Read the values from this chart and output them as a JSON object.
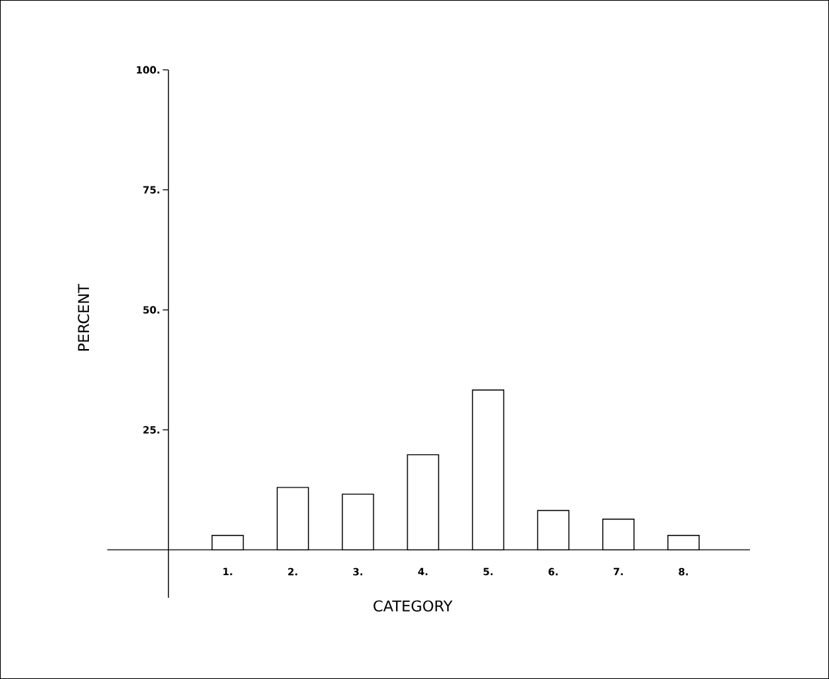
{
  "chart_data": {
    "type": "bar",
    "xlabel": "CATEGORY",
    "ylabel": "PERCENT",
    "categories": [
      "1.",
      "2.",
      "3.",
      "4.",
      "5.",
      "6.",
      "7.",
      "8."
    ],
    "values": [
      3,
      13,
      11.6,
      19.8,
      33.3,
      8.2,
      6.4,
      3
    ],
    "color": "#000000",
    "ylim": [
      -10,
      100
    ],
    "yticks": [
      {
        "value": 25,
        "label": "25."
      },
      {
        "value": 50,
        "label": "50."
      },
      {
        "value": 75,
        "label": "75."
      },
      {
        "value": 100,
        "label": "100."
      }
    ]
  }
}
